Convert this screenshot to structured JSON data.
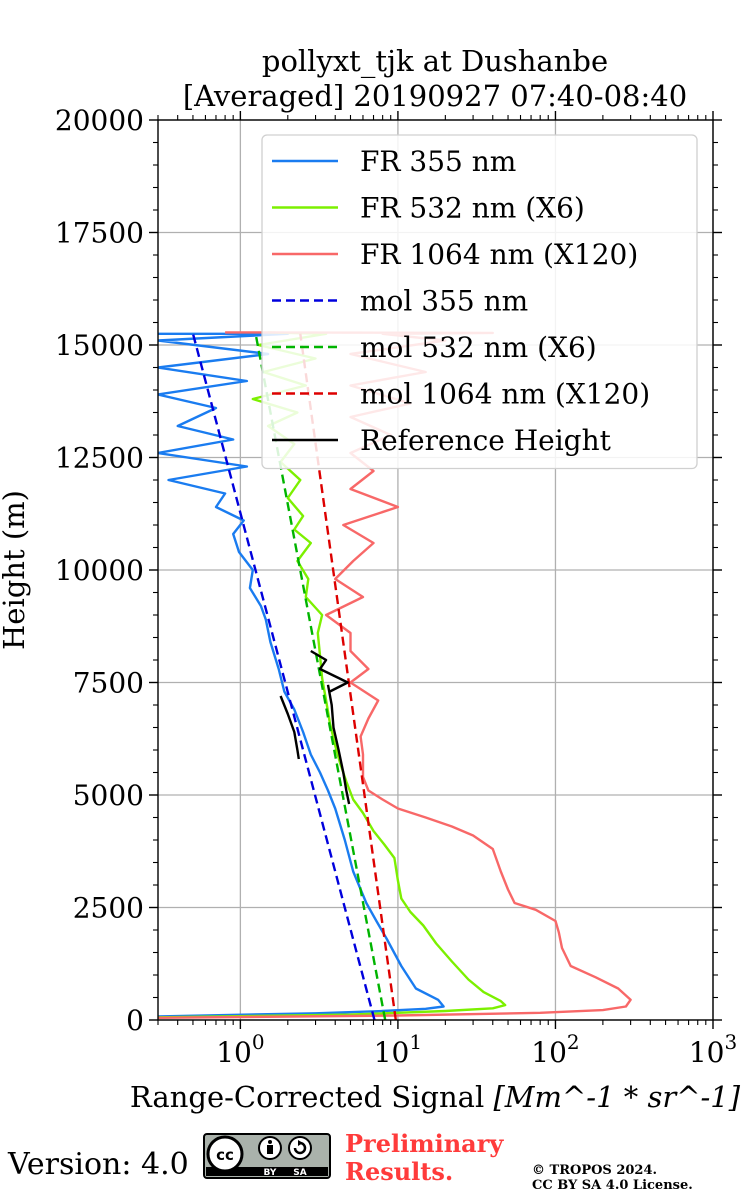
{
  "chart_data": {
    "type": "line",
    "title": [
      "pollyxt_tjk at Dushanbe",
      "[Averaged] 20190927 07:40-08:40"
    ],
    "xlabel": "Range-Corrected Signal",
    "xlabel_unit": "[Mm^-1 * sr^-1]",
    "ylabel": "Height (m)",
    "xscale": "log",
    "xlim": [
      0.3,
      1000
    ],
    "ylim": [
      0,
      20000
    ],
    "yticks": [
      0,
      2500,
      5000,
      7500,
      10000,
      12500,
      15000,
      17500,
      20000
    ],
    "ytick_labels": [
      "0",
      "2500",
      "5000",
      "7500",
      "10000",
      "12500",
      "15000",
      "17500",
      "20000"
    ],
    "xticks": [
      1,
      10,
      100,
      1000
    ],
    "xtick_labels": [
      {
        "base": "10",
        "exp": "0"
      },
      {
        "base": "10",
        "exp": "1"
      },
      {
        "base": "10",
        "exp": "2"
      },
      {
        "base": "10",
        "exp": "3"
      }
    ],
    "grid": true,
    "legend_position": "upper-right",
    "series": [
      {
        "name": "FR 355 nm",
        "color": "#1a7cf0",
        "style": "solid",
        "points": [
          [
            0.3,
            80
          ],
          [
            3,
            150
          ],
          [
            8,
            200
          ],
          [
            15,
            250
          ],
          [
            19.5,
            300
          ],
          [
            18,
            450
          ],
          [
            13,
            700
          ],
          [
            10.5,
            1200
          ],
          [
            8.5,
            1800
          ],
          [
            7.3,
            2200
          ],
          [
            6.3,
            2600
          ],
          [
            5.2,
            3300
          ],
          [
            4.6,
            4000
          ],
          [
            4,
            4700
          ],
          [
            3.6,
            5100
          ],
          [
            3.2,
            5500
          ],
          [
            2.8,
            5900
          ],
          [
            2.5,
            6400
          ],
          [
            2.2,
            6900
          ],
          [
            1.9,
            7300
          ],
          [
            1.75,
            7800
          ],
          [
            1.55,
            8400
          ],
          [
            1.45,
            8900
          ],
          [
            1.35,
            9200
          ],
          [
            1.15,
            9600
          ],
          [
            1.2,
            10000
          ],
          [
            0.98,
            10400
          ],
          [
            0.9,
            10800
          ],
          [
            1.05,
            11100
          ],
          [
            0.7,
            11400
          ],
          [
            0.8,
            11700
          ],
          [
            0.35,
            12000
          ],
          [
            1.1,
            12300
          ],
          [
            0.3,
            12600
          ],
          [
            0.9,
            12900
          ],
          [
            0.4,
            13200
          ],
          [
            0.7,
            13600
          ],
          [
            0.3,
            13900
          ],
          [
            1.1,
            14200
          ],
          [
            0.3,
            14500
          ],
          [
            1.5,
            14800
          ],
          [
            0.3,
            15100
          ],
          [
            2,
            15250
          ],
          [
            0.3,
            15250
          ]
        ]
      },
      {
        "name": "FR 532 nm (X6)",
        "color": "#7cf000",
        "style": "solid",
        "points": [
          [
            0.3,
            60
          ],
          [
            5,
            120
          ],
          [
            20,
            200
          ],
          [
            40,
            260
          ],
          [
            48,
            330
          ],
          [
            45,
            420
          ],
          [
            35,
            620
          ],
          [
            28,
            900
          ],
          [
            22,
            1300
          ],
          [
            17.5,
            1700
          ],
          [
            14.5,
            2100
          ],
          [
            12,
            2400
          ],
          [
            10.5,
            2700
          ],
          [
            10,
            3100
          ],
          [
            9.5,
            3600
          ],
          [
            8.2,
            3900
          ],
          [
            7,
            4200
          ],
          [
            6,
            4600
          ],
          [
            5.2,
            4900
          ],
          [
            4.7,
            5300
          ],
          [
            4.3,
            5700
          ],
          [
            4,
            6100
          ],
          [
            3.7,
            6600
          ],
          [
            3.5,
            7100
          ],
          [
            3.3,
            7600
          ],
          [
            3.2,
            8100
          ],
          [
            3.1,
            8600
          ],
          [
            3.3,
            9000
          ],
          [
            2.6,
            9400
          ],
          [
            2.7,
            9800
          ],
          [
            2.3,
            10200
          ],
          [
            2.8,
            10600
          ],
          [
            2.2,
            10900
          ],
          [
            2.5,
            11200
          ],
          [
            2,
            11600
          ],
          [
            2.4,
            12000
          ],
          [
            1.8,
            12400
          ],
          [
            2.2,
            12800
          ],
          [
            1.5,
            13200
          ],
          [
            2.3,
            13500
          ],
          [
            1.2,
            13800
          ],
          [
            2.6,
            14100
          ],
          [
            1.4,
            14400
          ],
          [
            3,
            14700
          ],
          [
            1.3,
            15000
          ],
          [
            3.5,
            15250
          ],
          [
            1.5,
            15280
          ]
        ]
      },
      {
        "name": "FR 1064 nm (X120)",
        "color": "#f86868",
        "style": "solid",
        "points": [
          [
            0.3,
            50
          ],
          [
            10,
            100
          ],
          [
            80,
            160
          ],
          [
            200,
            220
          ],
          [
            280,
            300
          ],
          [
            300,
            450
          ],
          [
            250,
            700
          ],
          [
            180,
            950
          ],
          [
            125,
            1200
          ],
          [
            110,
            1600
          ],
          [
            105,
            1950
          ],
          [
            100,
            2200
          ],
          [
            75,
            2450
          ],
          [
            55,
            2600
          ],
          [
            50,
            2900
          ],
          [
            45,
            3300
          ],
          [
            40,
            3800
          ],
          [
            30,
            4100
          ],
          [
            22,
            4300
          ],
          [
            15,
            4500
          ],
          [
            10,
            4700
          ],
          [
            8,
            4900
          ],
          [
            6.5,
            5100
          ],
          [
            6,
            5400
          ],
          [
            6,
            5900
          ],
          [
            5.8,
            6300
          ],
          [
            6.5,
            6700
          ],
          [
            7.5,
            7100
          ],
          [
            5,
            7500
          ],
          [
            6.5,
            7800
          ],
          [
            5,
            8200
          ],
          [
            5,
            8600
          ],
          [
            3.5,
            9000
          ],
          [
            6,
            9400
          ],
          [
            4,
            9800
          ],
          [
            5.2,
            10200
          ],
          [
            7,
            10600
          ],
          [
            4.5,
            11000
          ],
          [
            10,
            11400
          ],
          [
            5,
            11800
          ],
          [
            7,
            12200
          ],
          [
            5,
            12600
          ],
          [
            9,
            13000
          ],
          [
            5,
            13400
          ],
          [
            12,
            13700
          ],
          [
            5,
            14100
          ],
          [
            15,
            14400
          ],
          [
            5,
            14800
          ],
          [
            20,
            15100
          ],
          [
            8,
            15250
          ],
          [
            40,
            15270
          ],
          [
            0.8,
            15280
          ]
        ]
      },
      {
        "name": "mol 355 nm",
        "color": "#0000dd",
        "style": "dashed",
        "points": [
          [
            7.1,
            0
          ],
          [
            0.5,
            15250
          ]
        ]
      },
      {
        "name": "mol 532 nm (X6)",
        "color": "#00b400",
        "style": "dashed",
        "points": [
          [
            8.3,
            0
          ],
          [
            1.25,
            15250
          ]
        ]
      },
      {
        "name": "mol 1064 nm (X120)",
        "color": "#dd0000",
        "style": "dashed",
        "points": [
          [
            9.7,
            0
          ],
          [
            2.4,
            15250
          ]
        ]
      },
      {
        "name": "Reference Height",
        "color": "#000000",
        "style": "solid",
        "segments": [
          [
            [
              1.8,
              7200
            ],
            [
              2.0,
              6800
            ],
            [
              2.2,
              6400
            ],
            [
              2.3,
              6000
            ],
            [
              2.35,
              5800
            ]
          ],
          [
            [
              3.6,
              7450
            ],
            [
              3.8,
              7000
            ],
            [
              3.9,
              6500
            ],
            [
              4.2,
              6000
            ],
            [
              4.5,
              5500
            ],
            [
              4.7,
              5100
            ],
            [
              4.9,
              4800
            ]
          ],
          [
            [
              2.8,
              8200
            ],
            [
              3.5,
              8000
            ],
            [
              3.2,
              7800
            ],
            [
              4.2,
              7600
            ],
            [
              4.8,
              7500
            ],
            [
              3.7,
              7300
            ]
          ]
        ]
      }
    ]
  },
  "footer": {
    "version": "Version: 4.0",
    "badge": {
      "cc": "cc",
      "by": "BY",
      "sa": "SA"
    },
    "preliminary_line1": "Preliminary",
    "preliminary_line2": "Results.",
    "copyright_line1": "© TROPOS 2024.",
    "copyright_line2": "CC BY SA 4.0 License."
  }
}
